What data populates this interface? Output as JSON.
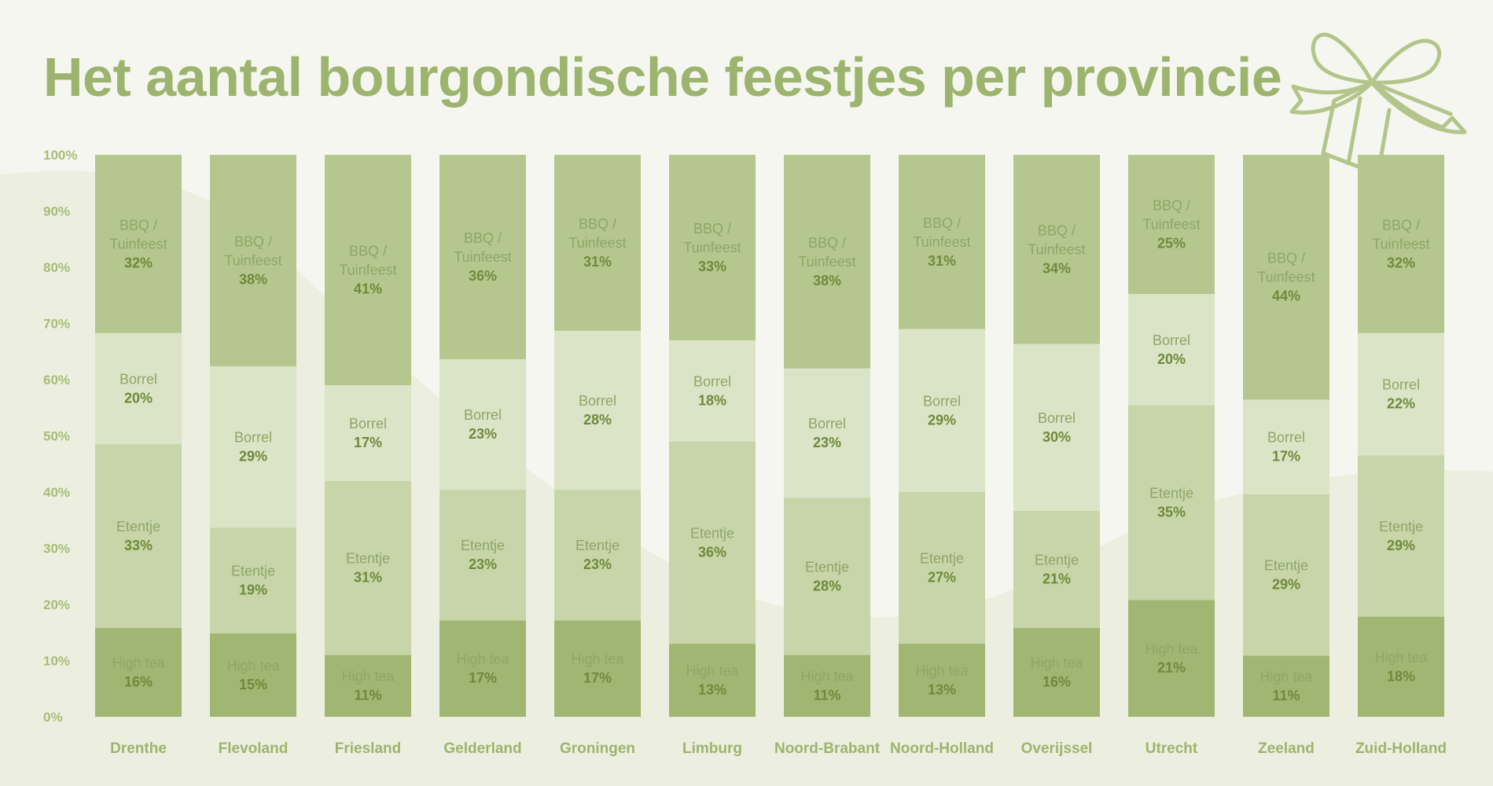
{
  "title": "Het aantal bourgondische feestjes per provincie",
  "colors": {
    "title": "#9db46e",
    "tick": "#a7bd77",
    "category_label": "#9db46e",
    "segment_label_name": "#8fa56a",
    "segment_label_value": "#6f8a3a",
    "high_tea": "#a2b673",
    "etentje": "#c7d5a8",
    "borrel": "#dbe4c6",
    "bbq": "#b6c68f",
    "background": "#f5f6ef",
    "background_shape": "#eceedf",
    "gift_outline": "#b3c58a"
  },
  "chart_data": {
    "type": "bar",
    "stacked": true,
    "normalized": true,
    "title": "Het aantal bourgondische feestjes per provincie",
    "xlabel": "",
    "ylabel": "",
    "ylim": [
      0,
      100
    ],
    "y_ticks": [
      "0%",
      "10%",
      "20%",
      "30%",
      "40%",
      "50%",
      "60%",
      "70%",
      "80%",
      "90%",
      "100%"
    ],
    "categories": [
      "Drenthe",
      "Flevoland",
      "Friesland",
      "Gelderland",
      "Groningen",
      "Limburg",
      "Noord-Brabant",
      "Noord-Holland",
      "Overijssel",
      "Utrecht",
      "Zeeland",
      "Zuid-Holland"
    ],
    "series": [
      {
        "key": "high_tea",
        "name": "High tea",
        "values": [
          16,
          15,
          11,
          17,
          17,
          13,
          11,
          13,
          16,
          21,
          11,
          18
        ]
      },
      {
        "key": "etentje",
        "name": "Etentje",
        "values": [
          33,
          19,
          31,
          23,
          23,
          36,
          28,
          27,
          21,
          35,
          29,
          29
        ]
      },
      {
        "key": "borrel",
        "name": "Borrel",
        "values": [
          20,
          29,
          17,
          23,
          28,
          18,
          23,
          29,
          30,
          20,
          17,
          22
        ]
      },
      {
        "key": "bbq",
        "name": "BBQ / Tuinfeest",
        "name_lines": [
          "BBQ /",
          "Tuinfeest"
        ],
        "values": [
          32,
          38,
          41,
          36,
          31,
          33,
          38,
          31,
          34,
          25,
          44,
          32
        ]
      }
    ]
  }
}
